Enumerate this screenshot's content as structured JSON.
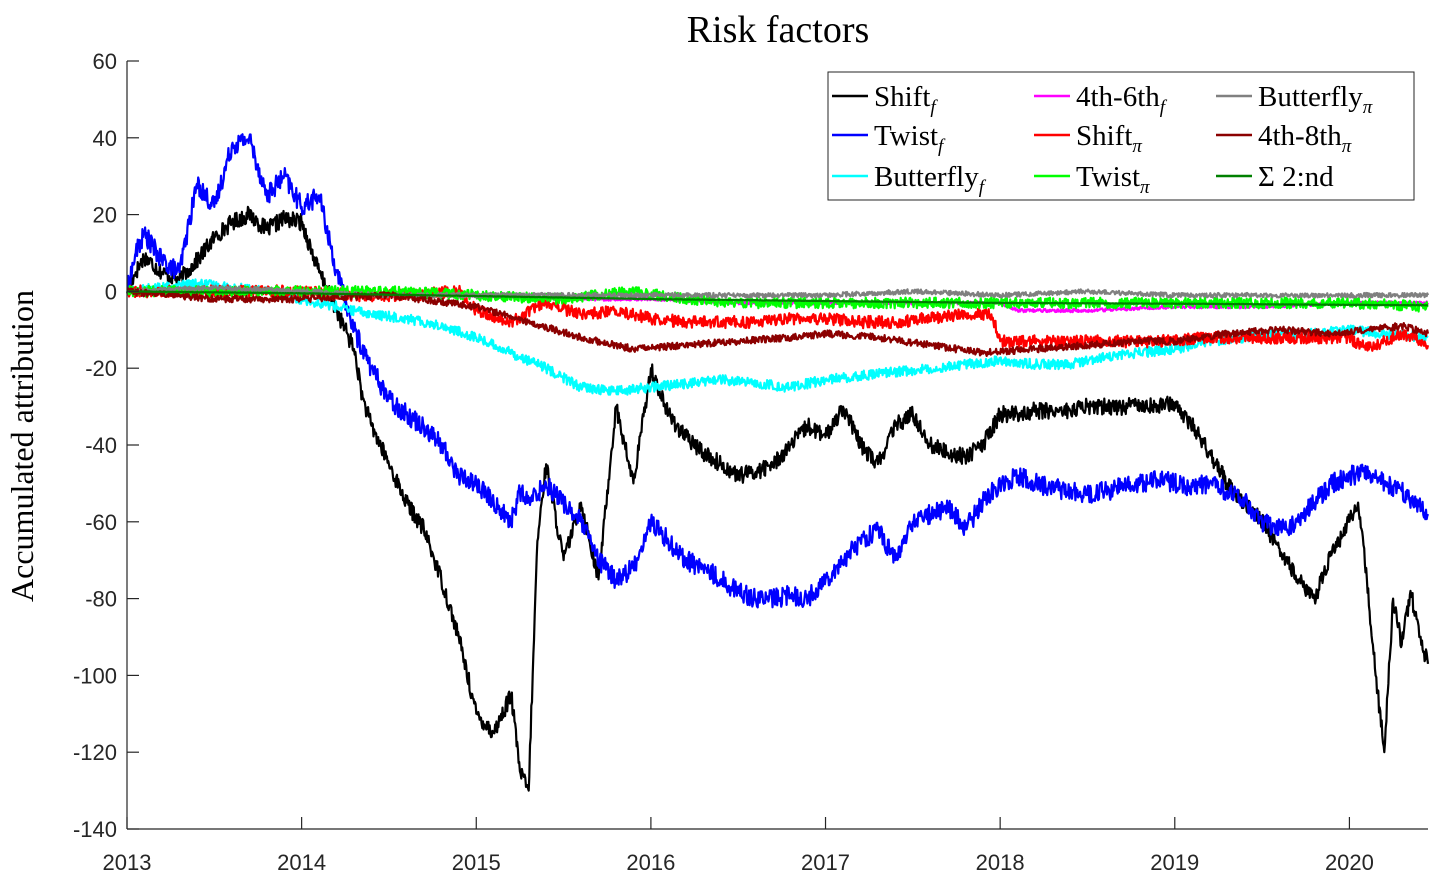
{
  "chart_data": {
    "type": "line",
    "title": "Risk factors",
    "xlabel": "",
    "ylabel": "Accumulated attribution",
    "xlim": [
      2013,
      2020.45
    ],
    "ylim": [
      -140,
      60
    ],
    "x_ticks": [
      2013,
      2014,
      2015,
      2016,
      2017,
      2018,
      2019,
      2020
    ],
    "x_tick_labels": [
      "2013",
      "2014",
      "2015",
      "2016",
      "2017",
      "2018",
      "2019",
      "2020"
    ],
    "y_ticks": [
      -140,
      -120,
      -100,
      -80,
      -60,
      -40,
      -20,
      0,
      20,
      40,
      60
    ],
    "y_tick_labels": [
      "-140",
      "-120",
      "-100",
      "-80",
      "-60",
      "-40",
      "-20",
      "0",
      "20",
      "40",
      "60"
    ],
    "grid": false,
    "legend_position": "top-right",
    "legend_columns": 3,
    "series": [
      {
        "name": "Shift",
        "sub": "f",
        "color": "#000000",
        "x": [
          2013.0,
          2013.05,
          2013.1,
          2013.2,
          2013.3,
          2013.4,
          2013.5,
          2013.6,
          2013.7,
          2013.8,
          2013.9,
          2014.0,
          2014.1,
          2014.2,
          2014.3,
          2014.35,
          2014.4,
          2014.5,
          2014.6,
          2014.7,
          2014.8,
          2014.9,
          2015.0,
          2015.1,
          2015.2,
          2015.25,
          2015.3,
          2015.35,
          2015.4,
          2015.5,
          2015.6,
          2015.7,
          2015.8,
          2015.9,
          2016.0,
          2016.1,
          2016.2,
          2016.3,
          2016.4,
          2016.5,
          2016.6,
          2016.7,
          2016.8,
          2016.9,
          2017.0,
          2017.1,
          2017.2,
          2017.3,
          2017.4,
          2017.5,
          2017.6,
          2017.7,
          2017.8,
          2017.9,
          2018.0,
          2018.1,
          2018.2,
          2018.3,
          2018.4,
          2018.5,
          2018.6,
          2018.7,
          2018.8,
          2018.9,
          2019.0,
          2019.1,
          2019.2,
          2019.3,
          2019.4,
          2019.5,
          2019.6,
          2019.7,
          2019.8,
          2019.9,
          2020.0,
          2020.05,
          2020.1,
          2020.15,
          2020.2,
          2020.25,
          2020.3,
          2020.35,
          2020.4,
          2020.45
        ],
        "y": [
          0,
          5,
          9,
          5,
          3,
          8,
          14,
          18,
          20,
          16,
          19,
          18,
          5,
          -5,
          -15,
          -28,
          -35,
          -45,
          -55,
          -62,
          -75,
          -90,
          -110,
          -115,
          -105,
          -125,
          -130,
          -65,
          -45,
          -70,
          -55,
          -75,
          -30,
          -50,
          -20,
          -32,
          -38,
          -42,
          -45,
          -48,
          -47,
          -45,
          -40,
          -35,
          -38,
          -30,
          -40,
          -45,
          -35,
          -32,
          -40,
          -42,
          -43,
          -40,
          -32,
          -32,
          -31,
          -31,
          -31,
          -30,
          -30,
          -30,
          -29,
          -30,
          -29,
          -35,
          -42,
          -50,
          -55,
          -60,
          -67,
          -75,
          -80,
          -68,
          -60,
          -55,
          -75,
          -100,
          -120,
          -80,
          -92,
          -78,
          -90,
          -97
        ]
      },
      {
        "name": "Twist",
        "sub": "f",
        "color": "#0000ff",
        "x": [
          2013.0,
          2013.05,
          2013.1,
          2013.2,
          2013.3,
          2013.4,
          2013.5,
          2013.6,
          2013.7,
          2013.8,
          2013.9,
          2014.0,
          2014.1,
          2014.2,
          2014.3,
          2014.4,
          2014.5,
          2014.6,
          2014.7,
          2014.8,
          2014.9,
          2015.0,
          2015.1,
          2015.2,
          2015.25,
          2015.3,
          2015.4,
          2015.5,
          2015.6,
          2015.7,
          2015.8,
          2015.9,
          2016.0,
          2016.1,
          2016.2,
          2016.3,
          2016.4,
          2016.5,
          2016.6,
          2016.7,
          2016.8,
          2016.9,
          2017.0,
          2017.1,
          2017.2,
          2017.3,
          2017.4,
          2017.5,
          2017.6,
          2017.7,
          2017.8,
          2017.9,
          2018.0,
          2018.1,
          2018.2,
          2018.3,
          2018.4,
          2018.5,
          2018.6,
          2018.7,
          2018.8,
          2018.9,
          2019.0,
          2019.1,
          2019.2,
          2019.3,
          2019.4,
          2019.5,
          2019.6,
          2019.7,
          2019.8,
          2019.9,
          2020.0,
          2020.1,
          2020.2,
          2020.3,
          2020.4,
          2020.45
        ],
        "y": [
          0,
          10,
          15,
          8,
          5,
          28,
          22,
          38,
          40,
          25,
          30,
          22,
          25,
          5,
          -10,
          -20,
          -28,
          -32,
          -35,
          -40,
          -48,
          -50,
          -55,
          -60,
          -52,
          -55,
          -50,
          -55,
          -60,
          -70,
          -75,
          -72,
          -60,
          -65,
          -70,
          -72,
          -75,
          -78,
          -80,
          -80,
          -79,
          -80,
          -75,
          -70,
          -65,
          -62,
          -70,
          -60,
          -58,
          -56,
          -62,
          -55,
          -50,
          -48,
          -50,
          -51,
          -52,
          -53,
          -52,
          -51,
          -50,
          -49,
          -50,
          -51,
          -50,
          -52,
          -55,
          -60,
          -62,
          -60,
          -55,
          -50,
          -48,
          -47,
          -50,
          -52,
          -56,
          -58
        ]
      },
      {
        "name": "Butterfly",
        "sub": "f",
        "color": "#00ffff",
        "x": [
          2013.0,
          2013.2,
          2013.4,
          2013.6,
          2013.8,
          2014.0,
          2014.2,
          2014.4,
          2014.6,
          2014.8,
          2015.0,
          2015.2,
          2015.4,
          2015.6,
          2015.8,
          2016.0,
          2016.2,
          2016.4,
          2016.6,
          2016.8,
          2017.0,
          2017.2,
          2017.4,
          2017.6,
          2017.8,
          2018.0,
          2018.2,
          2018.4,
          2018.6,
          2018.8,
          2019.0,
          2019.2,
          2019.4,
          2019.6,
          2019.8,
          2020.0,
          2020.2,
          2020.45
        ],
        "y": [
          0,
          1,
          2,
          1,
          0,
          -2,
          -4,
          -6,
          -7,
          -9,
          -12,
          -16,
          -20,
          -25,
          -26,
          -25,
          -24,
          -23,
          -24,
          -25,
          -23,
          -22,
          -21,
          -20,
          -19,
          -18,
          -19,
          -19,
          -17,
          -16,
          -15,
          -13,
          -12,
          -11,
          -11,
          -10,
          -11,
          -12
        ]
      },
      {
        "name": "4th-6th",
        "sub": "f",
        "color": "#ff00ff",
        "x": [
          2013.0,
          2013.5,
          2014.0,
          2014.5,
          2015.0,
          2015.5,
          2016.0,
          2016.5,
          2017.0,
          2017.5,
          2018.0,
          2018.1,
          2018.5,
          2019.0,
          2019.5,
          2020.0,
          2020.45
        ],
        "y": [
          0,
          0,
          0,
          -1,
          -1,
          -2,
          -2,
          -3,
          -3,
          -3,
          -3,
          -5,
          -5,
          -4,
          -4,
          -3,
          -3
        ]
      },
      {
        "name": "Shift",
        "sub": "π",
        "color": "#ff0000",
        "x": [
          2013.0,
          2013.5,
          2014.0,
          2014.3,
          2014.6,
          2014.9,
          2015.0,
          2015.2,
          2015.4,
          2015.6,
          2015.8,
          2016.0,
          2016.2,
          2016.4,
          2016.6,
          2016.8,
          2017.0,
          2017.2,
          2017.4,
          2017.6,
          2017.8,
          2017.95,
          2018.0,
          2018.3,
          2018.6,
          2018.9,
          2019.2,
          2019.5,
          2019.8,
          2020.0,
          2020.1,
          2020.2,
          2020.3,
          2020.45
        ],
        "y": [
          0,
          0,
          0,
          -1,
          -1,
          0,
          -5,
          -8,
          -3,
          -6,
          -5,
          -7,
          -8,
          -8,
          -8,
          -7,
          -7,
          -8,
          -8,
          -7,
          -6,
          -6,
          -13,
          -13,
          -13,
          -13,
          -12,
          -12,
          -12,
          -12,
          -15,
          -13,
          -11,
          -14
        ]
      },
      {
        "name": "Twist",
        "sub": "π",
        "color": "#00ff00",
        "x": [
          2013.0,
          2013.5,
          2014.0,
          2014.5,
          2015.0,
          2015.5,
          2015.9,
          2016.2,
          2016.5,
          2017.0,
          2017.5,
          2018.0,
          2018.5,
          2019.0,
          2019.5,
          2020.0,
          2020.45
        ],
        "y": [
          0,
          0,
          0,
          0,
          -1,
          -2,
          0,
          -2,
          -3,
          -3,
          -3,
          -3,
          -3,
          -3,
          -3,
          -3,
          -4
        ]
      },
      {
        "name": "Butterfly",
        "sub": "π",
        "color": "#808080",
        "x": [
          2013.0,
          2013.5,
          2014.0,
          2014.5,
          2015.0,
          2015.5,
          2016.0,
          2016.5,
          2017.0,
          2017.5,
          2018.0,
          2018.5,
          2019.0,
          2019.5,
          2020.0,
          2020.45
        ],
        "y": [
          0,
          1,
          0,
          -1,
          -1,
          -1,
          -1,
          -1,
          -1,
          0,
          -1,
          0,
          -1,
          -1,
          -1,
          -1
        ]
      },
      {
        "name": "4th-8th",
        "sub": "π",
        "color": "#8b0000",
        "x": [
          2013.0,
          2013.5,
          2014.0,
          2014.5,
          2015.0,
          2015.3,
          2015.6,
          2015.9,
          2016.2,
          2016.5,
          2016.8,
          2017.0,
          2017.3,
          2017.6,
          2017.9,
          2018.2,
          2018.5,
          2018.8,
          2019.0,
          2019.3,
          2019.6,
          2019.9,
          2020.1,
          2020.3,
          2020.45
        ],
        "y": [
          0,
          -2,
          -2,
          -1,
          -4,
          -8,
          -12,
          -15,
          -14,
          -13,
          -12,
          -11,
          -12,
          -14,
          -16,
          -15,
          -14,
          -13,
          -13,
          -11,
          -10,
          -11,
          -10,
          -9,
          -11
        ]
      },
      {
        "name": "Σ 2:nd",
        "sub": "",
        "color": "#008000",
        "x": [
          2013.0,
          2014.0,
          2015.0,
          2016.0,
          2017.0,
          2018.0,
          2019.0,
          2020.0,
          2020.45
        ],
        "y": [
          0,
          -0.5,
          -1.2,
          -2.0,
          -2.5,
          -3.0,
          -3.2,
          -3.5,
          -3.6
        ]
      }
    ]
  }
}
